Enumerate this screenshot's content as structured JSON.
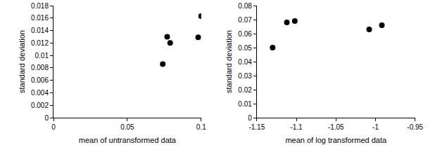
{
  "chart_data": [
    {
      "type": "scatter",
      "x_label": "mean of untransformed data",
      "y_label": "standard deviation",
      "x": [
        0.074,
        0.077,
        0.079,
        0.098,
        0.1
      ],
      "values": [
        0.0086,
        0.013,
        0.012,
        0.0129,
        0.0163
      ],
      "xlim": [
        0,
        0.1
      ],
      "xticks": [
        0,
        0.05,
        0.1
      ],
      "ylim": [
        0,
        0.018
      ],
      "yticks": [
        0,
        0.002,
        0.004,
        0.006,
        0.008,
        0.01,
        0.012,
        0.014,
        0.016,
        0.018
      ],
      "color": "#000000",
      "marker": "circle",
      "grid": false
    },
    {
      "type": "scatter",
      "x_label": "mean of log transformed data",
      "y_label": "standard deviation",
      "x": [
        -1.13,
        -1.112,
        -1.102,
        -1.008,
        -0.992
      ],
      "values": [
        0.05,
        0.068,
        0.069,
        0.063,
        0.066
      ],
      "xlim": [
        -1.15,
        -0.95
      ],
      "xticks": [
        -1.15,
        -1.1,
        -1.05,
        -1,
        -0.95
      ],
      "ylim": [
        0,
        0.08
      ],
      "yticks": [
        0,
        0.01,
        0.02,
        0.03,
        0.04,
        0.05,
        0.06,
        0.07,
        0.08
      ],
      "color": "#000000",
      "marker": "circle",
      "grid": false
    }
  ]
}
